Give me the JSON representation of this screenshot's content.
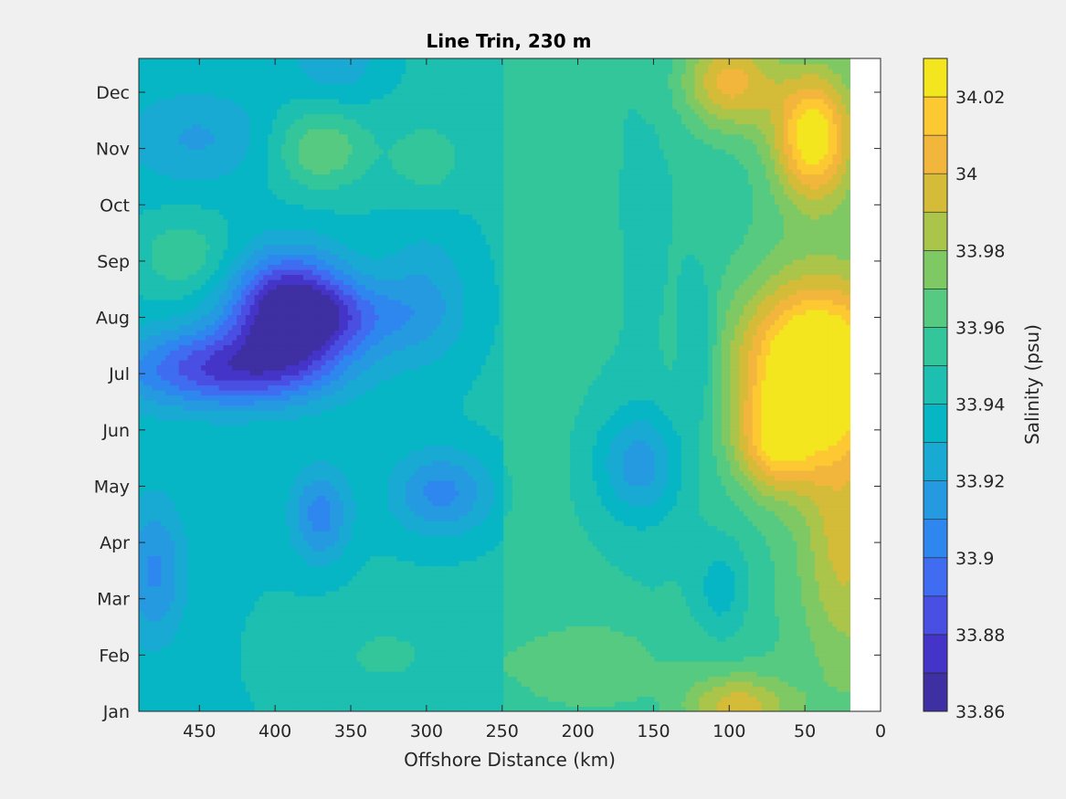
{
  "chart_data": {
    "type": "heatmap",
    "subtype": "filled-contour",
    "title": "Line Trin, 230 m",
    "xlabel": "Offshore Distance (km)",
    "ylabel": "",
    "xlim": [
      490,
      0
    ],
    "x_reversed": true,
    "xticks": [
      450,
      400,
      350,
      300,
      250,
      200,
      150,
      100,
      50,
      0
    ],
    "ylim": [
      0,
      11.6
    ],
    "yticks": [
      {
        "label": "Jan",
        "value": 0
      },
      {
        "label": "Feb",
        "value": 1
      },
      {
        "label": "Mar",
        "value": 2
      },
      {
        "label": "Apr",
        "value": 3
      },
      {
        "label": "May",
        "value": 4
      },
      {
        "label": "Jun",
        "value": 5
      },
      {
        "label": "Jul",
        "value": 6
      },
      {
        "label": "Aug",
        "value": 7
      },
      {
        "label": "Sep",
        "value": 8
      },
      {
        "label": "Oct",
        "value": 9
      },
      {
        "label": "Nov",
        "value": 10
      },
      {
        "label": "Dec",
        "value": 11
      }
    ],
    "data_x_extent": [
      490,
      20
    ],
    "colorbar": {
      "label": "Salinity (psu)",
      "limits": [
        33.86,
        34.03
      ],
      "levels": [
        33.86,
        33.87,
        33.88,
        33.89,
        33.9,
        33.91,
        33.92,
        33.93,
        33.94,
        33.95,
        33.96,
        33.97,
        33.98,
        33.99,
        34.0,
        34.01,
        34.02,
        34.03
      ],
      "ticks": [
        "33.86",
        "33.88",
        "33.9",
        "33.92",
        "33.94",
        "33.96",
        "33.98",
        "34",
        "34.02"
      ],
      "colors": [
        "#3e2fa2",
        "#4434c8",
        "#4a4fe4",
        "#3f6cf1",
        "#2e87ef",
        "#259ae0",
        "#18aad2",
        "#07b6c4",
        "#1cbfb0",
        "#33c69a",
        "#56ca80",
        "#7fc964",
        "#abc44a",
        "#d4bb38",
        "#f3b63c",
        "#fdc932",
        "#f3e51e"
      ]
    },
    "anomalies": [
      {
        "x": 390,
        "y": 7.2,
        "a": -0.075,
        "sx": 28,
        "sy": 0.7
      },
      {
        "x": 430,
        "y": 6.1,
        "a": -0.06,
        "sx": 50,
        "sy": 0.5
      },
      {
        "x": 355,
        "y": 7.0,
        "a": -0.03,
        "sx": 35,
        "sy": 0.45
      },
      {
        "x": 300,
        "y": 7.4,
        "a": -0.02,
        "sx": 22,
        "sy": 0.9
      },
      {
        "x": 370,
        "y": 3.5,
        "a": -0.035,
        "sx": 14,
        "sy": 0.6
      },
      {
        "x": 290,
        "y": 3.9,
        "a": -0.035,
        "sx": 24,
        "sy": 0.55
      },
      {
        "x": 160,
        "y": 4.4,
        "a": -0.035,
        "sx": 20,
        "sy": 0.7
      },
      {
        "x": 45,
        "y": 6.1,
        "a": 0.09,
        "sx": 35,
        "sy": 1.1
      },
      {
        "x": 70,
        "y": 4.7,
        "a": 0.04,
        "sx": 18,
        "sy": 0.6
      },
      {
        "x": 45,
        "y": 10.2,
        "a": 0.07,
        "sx": 18,
        "sy": 0.8
      },
      {
        "x": 100,
        "y": 11.2,
        "a": 0.05,
        "sx": 22,
        "sy": 0.6
      },
      {
        "x": 95,
        "y": 0.1,
        "a": 0.04,
        "sx": 25,
        "sy": 0.4
      },
      {
        "x": 25,
        "y": 3.0,
        "a": 0.03,
        "sx": 20,
        "sy": 1.5
      },
      {
        "x": 370,
        "y": 10.0,
        "a": 0.03,
        "sx": 22,
        "sy": 0.5
      },
      {
        "x": 300,
        "y": 9.8,
        "a": 0.015,
        "sx": 18,
        "sy": 0.5
      },
      {
        "x": 460,
        "y": 8.1,
        "a": 0.02,
        "sx": 22,
        "sy": 0.5
      },
      {
        "x": 480,
        "y": 2.5,
        "a": -0.03,
        "sx": 15,
        "sy": 0.9
      },
      {
        "x": 450,
        "y": 10.2,
        "a": -0.02,
        "sx": 35,
        "sy": 0.6
      },
      {
        "x": 360,
        "y": 11.6,
        "a": -0.02,
        "sx": 20,
        "sy": 0.5
      },
      {
        "x": 105,
        "y": 2.2,
        "a": -0.02,
        "sx": 12,
        "sy": 0.6
      },
      {
        "x": 120,
        "y": 6.4,
        "a": -0.02,
        "sx": 8,
        "sy": 0.9
      },
      {
        "x": 180,
        "y": 0.8,
        "a": 0.015,
        "sx": 40,
        "sy": 0.7
      },
      {
        "x": 330,
        "y": 1.0,
        "a": 0.01,
        "sx": 40,
        "sy": 0.7
      }
    ]
  }
}
